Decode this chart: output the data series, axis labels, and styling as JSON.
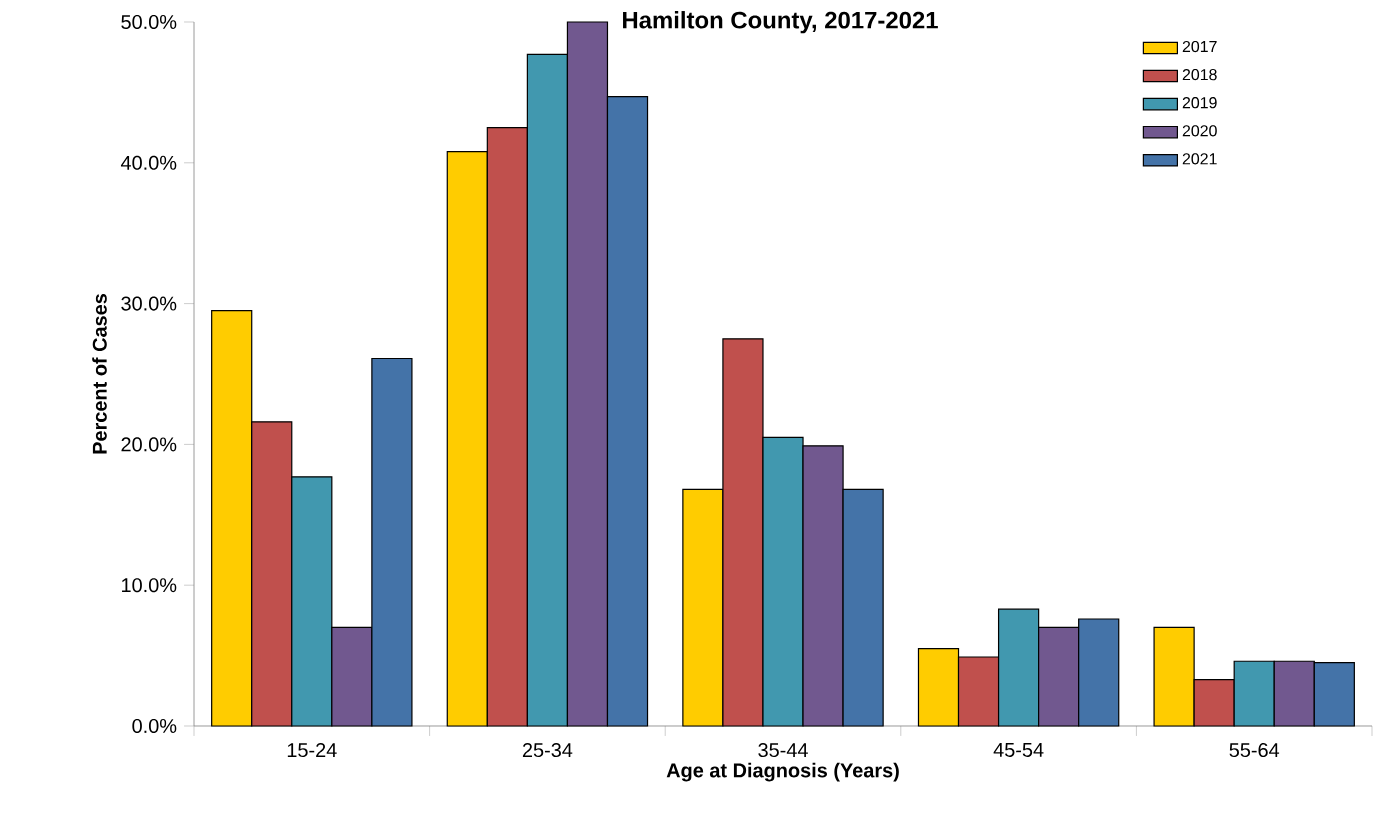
{
  "chart_data": {
    "type": "bar",
    "title": "Hamilton County, 2017-2021",
    "xlabel": "Age at Diagnosis (Years)",
    "ylabel": "Percent of Cases",
    "categories": [
      "15-24",
      "25-34",
      "35-44",
      "45-54",
      "55-64"
    ],
    "series": [
      {
        "name": "2017",
        "color": "#ffcc00",
        "values": [
          29.5,
          40.8,
          16.8,
          5.5,
          7.0
        ]
      },
      {
        "name": "2018",
        "color": "#c0504d",
        "values": [
          21.6,
          42.5,
          27.5,
          4.9,
          3.3
        ]
      },
      {
        "name": "2019",
        "color": "#4198af",
        "values": [
          17.7,
          47.7,
          20.5,
          8.3,
          4.6
        ]
      },
      {
        "name": "2020",
        "color": "#71588f",
        "values": [
          7.0,
          50.0,
          19.9,
          7.0,
          4.6
        ]
      },
      {
        "name": "2021",
        "color": "#4473a8",
        "values": [
          26.1,
          44.7,
          16.8,
          7.6,
          4.5
        ]
      }
    ],
    "ylim": [
      0,
      50
    ],
    "yticks": [
      {
        "value": 0,
        "label": "0.0%"
      },
      {
        "value": 10,
        "label": "10.0%"
      },
      {
        "value": 20,
        "label": "20.0%"
      },
      {
        "value": 30,
        "label": "30.0%"
      },
      {
        "value": 40,
        "label": "40.0%"
      },
      {
        "value": 50,
        "label": "50.0%"
      }
    ],
    "legend": "top right"
  }
}
